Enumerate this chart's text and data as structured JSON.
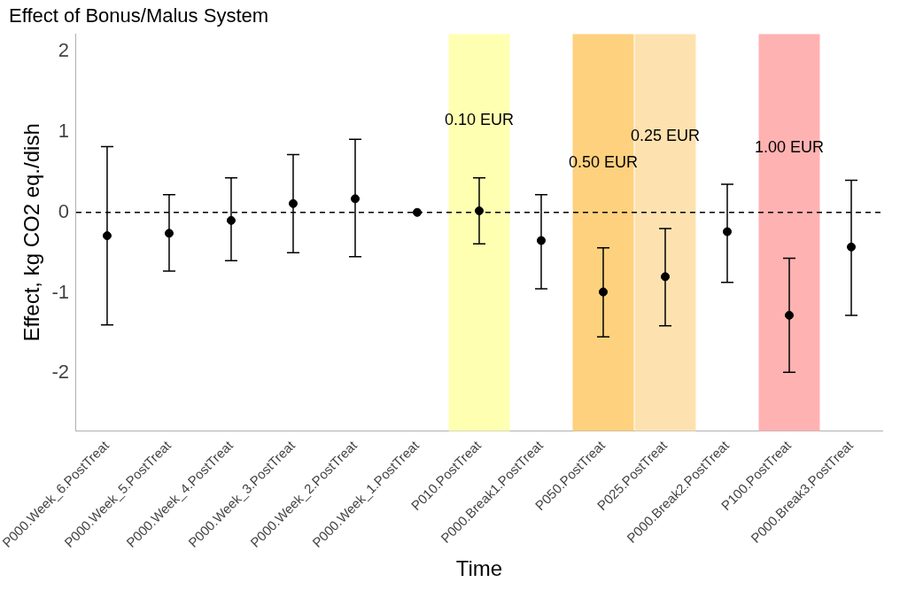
{
  "chart_data": {
    "type": "scatter",
    "title": "Effect of Bonus/Malus System",
    "xlabel": "Time",
    "ylabel": "Effect, kg CO2 eq./dish",
    "categories": [
      "P000.Week_6.PostTreat",
      "P000.Week_5.PostTreat",
      "P000.Week_4.PostTreat",
      "P000.Week_3.PostTreat",
      "P000.Week_2.PostTreat",
      "P000.Week_1.PostTreat",
      "P010.PostTreat",
      "P000.Break1.PostTreat",
      "P050.PostTreat",
      "P025.PostTreat",
      "P000.Break2.PostTreat",
      "P100.PostTreat",
      "P000.Break3.PostTreat"
    ],
    "series": [
      {
        "color": "#000000",
        "values": [
          -0.29,
          -0.26,
          -0.1,
          0.11,
          0.17,
          0,
          0.02,
          -0.35,
          -0.99,
          -0.8,
          -0.24,
          -1.28,
          -0.43
        ],
        "errors": [
          [
            -1.4,
            0.82
          ],
          [
            -0.73,
            0.22
          ],
          [
            -0.6,
            0.43
          ],
          [
            -0.5,
            0.72
          ],
          [
            -0.55,
            0.91
          ],
          null,
          [
            -0.39,
            0.43
          ],
          [
            -0.95,
            0.22
          ],
          [
            -1.55,
            -0.44
          ],
          [
            -1.41,
            -0.2
          ],
          [
            -0.87,
            0.35
          ],
          [
            -1.99,
            -0.57
          ],
          [
            -1.28,
            0.4
          ]
        ]
      }
    ],
    "ylim": [
      -2.72,
      2.22
    ],
    "yticks": [
      -2,
      -1,
      0,
      1,
      2
    ],
    "grid": false,
    "legend": false,
    "marker": "circle",
    "ref_lines": [
      {
        "axis": "y",
        "value": 0,
        "line_style": "dashed",
        "color": "#000000"
      }
    ],
    "bands": [
      {
        "axis": "x",
        "from": "P010.PostTreat",
        "to": "P010.PostTreat",
        "color": "#ffffb2",
        "label": "0.10 EUR"
      },
      {
        "axis": "x",
        "from": "P050.PostTreat",
        "to": "P050.PostTreat",
        "color": "#fed17e",
        "label": "0.50 EUR"
      },
      {
        "axis": "x",
        "from": "P025.PostTreat",
        "to": "P025.PostTreat",
        "color": "#fde2b0",
        "label": "0.25 EUR"
      },
      {
        "axis": "x",
        "from": "P100.PostTreat",
        "to": "P100.PostTreat",
        "color": "#ffb2b2",
        "label": "1.00 EUR"
      }
    ]
  }
}
